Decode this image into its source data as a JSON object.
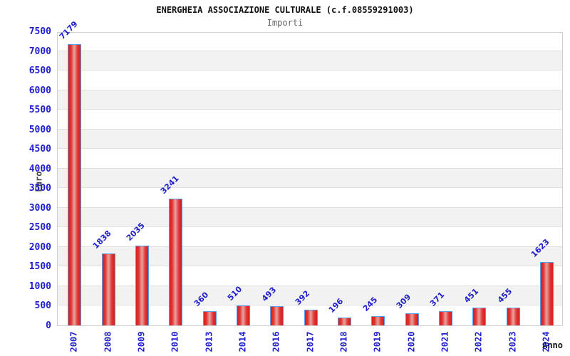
{
  "chart_data": {
    "type": "bar",
    "title": "ENERGHEIA ASSOCIAZIONE CULTURALE (c.f.08559291003)",
    "subtitle": "Importi",
    "ylabel": "Euro",
    "xlabel": "Anno",
    "categories": [
      "2007",
      "2008",
      "2009",
      "2010",
      "2013",
      "2014",
      "2016",
      "2017",
      "2018",
      "2019",
      "2020",
      "2021",
      "2022",
      "2023",
      "2024"
    ],
    "values": [
      7179,
      1838,
      2035,
      3241,
      360,
      510,
      493,
      392,
      196,
      245,
      309,
      371,
      451,
      455,
      1623
    ],
    "ylim": [
      0,
      7500
    ],
    "ytick_step": 500,
    "yticks": [
      "0",
      "500",
      "1000",
      "1500",
      "2000",
      "2500",
      "3000",
      "3500",
      "4000",
      "4500",
      "5000",
      "5500",
      "6000",
      "6500",
      "7000",
      "7500"
    ],
    "grid": true,
    "legend_position": "none",
    "colors": {
      "bar_edge": "#d51f1f",
      "bar_mid": "#e9a39d",
      "bar_border": "#5b9ce6",
      "label_blue": "#2020cc",
      "band_gray": "#f2f2f2",
      "gridline": "#e0e0e0",
      "plot_border": "#d0d0d0",
      "title_color": "#111111",
      "subtitle_color": "#666666",
      "axis_label_color": "#444444"
    }
  }
}
